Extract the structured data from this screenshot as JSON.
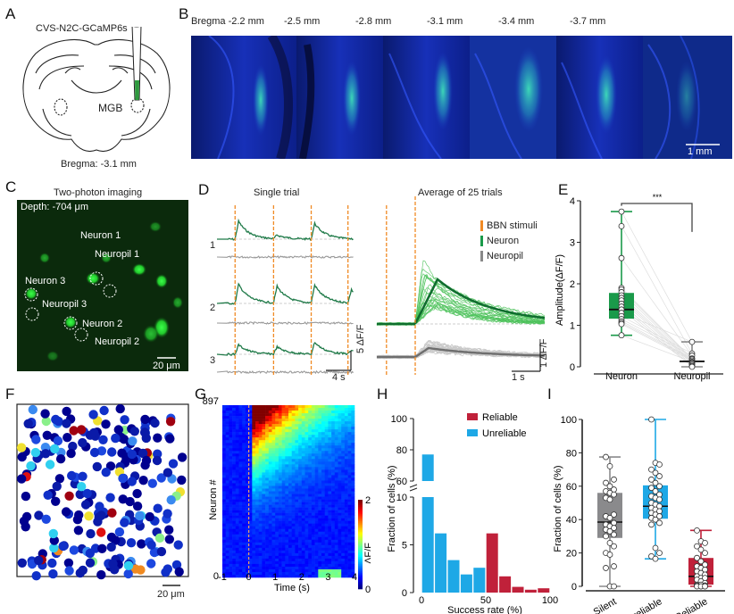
{
  "panels": {
    "A": {
      "letter": "A",
      "virus_label": "CVS-N2C-GCaMP6s",
      "region_label": "MGB",
      "bregma_label": "Bregma: -3.1 mm"
    },
    "B": {
      "letter": "B",
      "slices": [
        {
          "label": "Bregma -2.2 mm"
        },
        {
          "label": "-2.5 mm"
        },
        {
          "label": "-2.8 mm"
        },
        {
          "label": "-3.1 mm"
        },
        {
          "label": "-3.4 mm"
        },
        {
          "label": "-3.7 mm"
        }
      ],
      "scale_bar_label": "1 mm"
    },
    "C": {
      "letter": "C",
      "title": "Two-photon imaging",
      "depth_label": "Depth: -704 μm",
      "rois": [
        {
          "label": "Neuron 1"
        },
        {
          "label": "Neuropil 1"
        },
        {
          "label": "Neuron 3"
        },
        {
          "label": "Neuropil 3"
        },
        {
          "label": "Neuron 2"
        },
        {
          "label": "Neuropil 2"
        }
      ],
      "scale_bar_label": "20 μm"
    },
    "D": {
      "letter": "D",
      "single_trial_title": "Single trial",
      "average_title": "Average of 25 trials",
      "trace_labels": [
        "1",
        "2",
        "3"
      ],
      "single_scale_y": "5 ΔF/F",
      "single_scale_x": "4 s",
      "avg_scale_y": "1 ΔF/F",
      "avg_scale_x": "1 s",
      "legend": [
        {
          "label": "BBN stimuli",
          "color": "#f08a24"
        },
        {
          "label": "Neuron",
          "color": "#1a9a4a"
        },
        {
          "label": "Neuropil",
          "color": "#888888"
        }
      ]
    },
    "F": {
      "letter": "F",
      "scale_bar_label": "20 μm"
    },
    "G": {
      "letter": "G",
      "ylabel": "Neuron #",
      "xlabel": "Time (s)",
      "y_top_tick": "897",
      "y_bottom_tick": "0",
      "x_ticks": [
        "-1",
        "0",
        "1",
        "2",
        "3",
        "4"
      ],
      "colorbar_label": "ΔF/F",
      "colorbar_ticks": [
        "2",
        "0"
      ]
    }
  },
  "chart_data": [
    {
      "id": "E",
      "letter": "E",
      "type": "box",
      "ylabel": "Amplitude(ΔF/F)",
      "xlabel": "",
      "ylim": [
        0,
        4
      ],
      "yticks": [
        0,
        1,
        2,
        3,
        4
      ],
      "categories": [
        "Neuron",
        "Neuropil"
      ],
      "significance": "***",
      "colors": [
        "#1a9a4a",
        "#888888"
      ],
      "boxes": [
        {
          "name": "Neuron",
          "min": 0.76,
          "q1": 1.16,
          "median": 1.38,
          "q3": 1.78,
          "max": 3.74,
          "points": [
            3.74,
            3.39,
            2.62,
            1.9,
            1.86,
            1.8,
            1.72,
            1.66,
            1.6,
            1.52,
            1.45,
            1.38,
            1.3,
            1.22,
            1.15,
            1.1,
            1.06,
            1.03,
            0.76
          ]
        },
        {
          "name": "Neuropil",
          "min": 0.0,
          "q1": 0.07,
          "median": 0.13,
          "q3": 0.2,
          "max": 0.6,
          "points": [
            0.6,
            0.32,
            0.27,
            0.2,
            0.18,
            0.15,
            0.12,
            0.1,
            0.08,
            0.05,
            0.02,
            0.0
          ]
        }
      ]
    },
    {
      "id": "H",
      "letter": "H",
      "type": "bar",
      "title": "",
      "xlabel": "Success rate (%)",
      "ylabel": "Fraction of cells (%)",
      "xlim": [
        0,
        100
      ],
      "xticks": [
        0,
        50,
        100
      ],
      "yticks_lower": [
        0,
        5,
        10
      ],
      "yticks_upper": [
        60,
        80,
        100
      ],
      "broken_axis": [
        10,
        60
      ],
      "legend": [
        {
          "label": "Reliable",
          "color": "#c0213a"
        },
        {
          "label": "Unreliable",
          "color": "#1ea8e6"
        }
      ],
      "bin_width": 10,
      "categories": [
        "0-10",
        "10-20",
        "20-30",
        "30-40",
        "40-50",
        "50-60",
        "60-70",
        "70-80",
        "80-90",
        "90-100"
      ],
      "series": [
        {
          "name": "Unreliable",
          "values": [
            77,
            6.2,
            3.4,
            1.9,
            2.6,
            0,
            0,
            0,
            0,
            0
          ]
        },
        {
          "name": "Reliable",
          "values": [
            0,
            0,
            0,
            0,
            0,
            6.2,
            1.7,
            0.6,
            0.3,
            0.45
          ]
        }
      ]
    },
    {
      "id": "I",
      "letter": "I",
      "type": "box",
      "ylabel": "Fraction of cells (%)",
      "ylim": [
        0,
        100
      ],
      "yticks": [
        0,
        20,
        40,
        60,
        80,
        100
      ],
      "categories": [
        "Silent",
        "Unreliable",
        "Reliable"
      ],
      "colors": [
        "#8a8a8c",
        "#1ea8e6",
        "#c0213a"
      ],
      "boxes": [
        {
          "name": "Silent",
          "min": 0,
          "q1": 29,
          "median": 38.5,
          "q3": 56,
          "max": 77.5,
          "points": [
            77.5,
            72,
            64,
            62,
            60,
            58,
            57,
            56,
            55,
            53,
            52,
            43,
            42,
            41,
            38,
            37,
            36,
            35,
            34,
            33,
            31,
            30,
            26,
            24,
            20,
            19,
            12,
            11,
            0,
            0
          ]
        },
        {
          "name": "Unreliable",
          "min": 16.5,
          "q1": 40.5,
          "median": 48,
          "q3": 60.5,
          "max": 100,
          "points": [
            100,
            74,
            73,
            70,
            68,
            66,
            64,
            62,
            60,
            59,
            57,
            55,
            54,
            53,
            52,
            50,
            49,
            48,
            47,
            46,
            45,
            44,
            43,
            42,
            41,
            40,
            38,
            37,
            23,
            20,
            18,
            16.5
          ]
        },
        {
          "name": "Reliable",
          "min": 0,
          "q1": 1,
          "median": 6,
          "q3": 17,
          "max": 33.5,
          "points": [
            33.5,
            27,
            26,
            24,
            22,
            20,
            17,
            15,
            13,
            12,
            11,
            10,
            9,
            8,
            7,
            6,
            5,
            5,
            4,
            3,
            2,
            1,
            1,
            0.5,
            0.5,
            0,
            0,
            0,
            0,
            0
          ]
        }
      ]
    }
  ]
}
